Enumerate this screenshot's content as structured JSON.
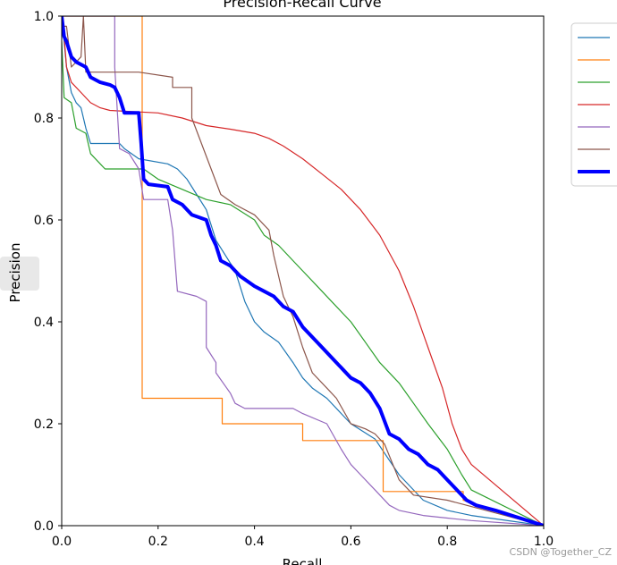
{
  "chart_data": {
    "type": "line",
    "title": "Precision-Recall Curve",
    "xlabel": "Recall",
    "ylabel": "Precision",
    "xlim": [
      0.0,
      1.0
    ],
    "ylim": [
      0.0,
      1.0
    ],
    "xticks": [
      "0.0",
      "0.2",
      "0.4",
      "0.6",
      "0.8",
      "1.0"
    ],
    "yticks": [
      "0.0",
      "0.2",
      "0.4",
      "0.6",
      "0.8",
      "1.0"
    ],
    "grid": false,
    "legend_position": "outside-top-right",
    "series": [
      {
        "name": "",
        "color": "#1f77b4",
        "width": 1.2,
        "points": [
          [
            0,
            1
          ],
          [
            0.005,
            0.95
          ],
          [
            0.01,
            0.9
          ],
          [
            0.02,
            0.85
          ],
          [
            0.03,
            0.83
          ],
          [
            0.04,
            0.82
          ],
          [
            0.05,
            0.78
          ],
          [
            0.06,
            0.75
          ],
          [
            0.12,
            0.75
          ],
          [
            0.13,
            0.74
          ],
          [
            0.16,
            0.72
          ],
          [
            0.22,
            0.71
          ],
          [
            0.24,
            0.7
          ],
          [
            0.26,
            0.68
          ],
          [
            0.28,
            0.65
          ],
          [
            0.3,
            0.62
          ],
          [
            0.32,
            0.56
          ],
          [
            0.34,
            0.53
          ],
          [
            0.36,
            0.5
          ],
          [
            0.37,
            0.47
          ],
          [
            0.38,
            0.44
          ],
          [
            0.4,
            0.4
          ],
          [
            0.42,
            0.38
          ],
          [
            0.45,
            0.36
          ],
          [
            0.48,
            0.32
          ],
          [
            0.5,
            0.29
          ],
          [
            0.52,
            0.27
          ],
          [
            0.55,
            0.25
          ],
          [
            0.58,
            0.22
          ],
          [
            0.6,
            0.2
          ],
          [
            0.65,
            0.17
          ],
          [
            0.7,
            0.1
          ],
          [
            0.75,
            0.05
          ],
          [
            0.8,
            0.03
          ],
          [
            0.85,
            0.02
          ],
          [
            1.0,
            0.0
          ]
        ]
      },
      {
        "name": "",
        "color": "#ff7f0e",
        "width": 1.2,
        "points": [
          [
            0,
            1
          ],
          [
            0.167,
            1
          ],
          [
            0.167,
            0.25
          ],
          [
            0.333,
            0.25
          ],
          [
            0.333,
            0.2
          ],
          [
            0.5,
            0.2
          ],
          [
            0.5,
            0.167
          ],
          [
            0.667,
            0.167
          ],
          [
            0.667,
            0.067
          ],
          [
            0.833,
            0.067
          ],
          [
            0.833,
            0.05
          ],
          [
            1.0,
            0.0
          ]
        ]
      },
      {
        "name": "",
        "color": "#2ca02c",
        "width": 1.2,
        "points": [
          [
            0,
            0.95
          ],
          [
            0.005,
            0.84
          ],
          [
            0.02,
            0.83
          ],
          [
            0.03,
            0.78
          ],
          [
            0.05,
            0.77
          ],
          [
            0.06,
            0.73
          ],
          [
            0.08,
            0.71
          ],
          [
            0.09,
            0.7
          ],
          [
            0.17,
            0.7
          ],
          [
            0.2,
            0.68
          ],
          [
            0.25,
            0.66
          ],
          [
            0.3,
            0.64
          ],
          [
            0.35,
            0.63
          ],
          [
            0.4,
            0.6
          ],
          [
            0.42,
            0.57
          ],
          [
            0.45,
            0.55
          ],
          [
            0.48,
            0.52
          ],
          [
            0.5,
            0.5
          ],
          [
            0.53,
            0.47
          ],
          [
            0.56,
            0.44
          ],
          [
            0.6,
            0.4
          ],
          [
            0.63,
            0.36
          ],
          [
            0.66,
            0.32
          ],
          [
            0.7,
            0.28
          ],
          [
            0.73,
            0.24
          ],
          [
            0.76,
            0.2
          ],
          [
            0.8,
            0.15
          ],
          [
            0.83,
            0.1
          ],
          [
            0.85,
            0.07
          ],
          [
            1.0,
            0.0
          ]
        ]
      },
      {
        "name": "",
        "color": "#d62728",
        "width": 1.2,
        "points": [
          [
            0,
            1
          ],
          [
            0.005,
            0.96
          ],
          [
            0.01,
            0.9
          ],
          [
            0.02,
            0.87
          ],
          [
            0.04,
            0.85
          ],
          [
            0.06,
            0.83
          ],
          [
            0.08,
            0.82
          ],
          [
            0.1,
            0.815
          ],
          [
            0.16,
            0.812
          ],
          [
            0.2,
            0.81
          ],
          [
            0.25,
            0.8
          ],
          [
            0.3,
            0.785
          ],
          [
            0.35,
            0.778
          ],
          [
            0.4,
            0.77
          ],
          [
            0.43,
            0.76
          ],
          [
            0.46,
            0.745
          ],
          [
            0.5,
            0.72
          ],
          [
            0.54,
            0.69
          ],
          [
            0.58,
            0.66
          ],
          [
            0.62,
            0.62
          ],
          [
            0.66,
            0.57
          ],
          [
            0.7,
            0.5
          ],
          [
            0.73,
            0.43
          ],
          [
            0.76,
            0.35
          ],
          [
            0.79,
            0.27
          ],
          [
            0.81,
            0.2
          ],
          [
            0.83,
            0.15
          ],
          [
            0.85,
            0.12
          ],
          [
            1.0,
            0.0
          ]
        ]
      },
      {
        "name": "",
        "color": "#9467bd",
        "width": 1.2,
        "points": [
          [
            0,
            1
          ],
          [
            0.11,
            1
          ],
          [
            0.11,
            0.9
          ],
          [
            0.12,
            0.74
          ],
          [
            0.14,
            0.73
          ],
          [
            0.16,
            0.7
          ],
          [
            0.17,
            0.64
          ],
          [
            0.22,
            0.64
          ],
          [
            0.23,
            0.58
          ],
          [
            0.24,
            0.46
          ],
          [
            0.28,
            0.45
          ],
          [
            0.3,
            0.44
          ],
          [
            0.3,
            0.35
          ],
          [
            0.32,
            0.32
          ],
          [
            0.32,
            0.3
          ],
          [
            0.35,
            0.26
          ],
          [
            0.36,
            0.24
          ],
          [
            0.38,
            0.23
          ],
          [
            0.48,
            0.23
          ],
          [
            0.5,
            0.22
          ],
          [
            0.55,
            0.2
          ],
          [
            0.58,
            0.15
          ],
          [
            0.6,
            0.12
          ],
          [
            0.62,
            0.1
          ],
          [
            0.65,
            0.07
          ],
          [
            0.68,
            0.04
          ],
          [
            0.7,
            0.03
          ],
          [
            0.75,
            0.02
          ],
          [
            0.8,
            0.015
          ],
          [
            0.85,
            0.01
          ],
          [
            1.0,
            0.0
          ]
        ]
      },
      {
        "name": "",
        "color": "#8c564b",
        "width": 1.2,
        "points": [
          [
            0,
            0.98
          ],
          [
            0.01,
            0.98
          ],
          [
            0.02,
            0.9
          ],
          [
            0.04,
            0.92
          ],
          [
            0.045,
            1
          ],
          [
            0.05,
            0.89
          ],
          [
            0.16,
            0.89
          ],
          [
            0.16,
            0.89
          ],
          [
            0.23,
            0.88
          ],
          [
            0.23,
            0.86
          ],
          [
            0.27,
            0.86
          ],
          [
            0.27,
            0.8
          ],
          [
            0.33,
            0.65
          ],
          [
            0.36,
            0.63
          ],
          [
            0.4,
            0.61
          ],
          [
            0.43,
            0.58
          ],
          [
            0.44,
            0.53
          ],
          [
            0.46,
            0.45
          ],
          [
            0.48,
            0.41
          ],
          [
            0.5,
            0.35
          ],
          [
            0.52,
            0.3
          ],
          [
            0.55,
            0.27
          ],
          [
            0.57,
            0.25
          ],
          [
            0.6,
            0.2
          ],
          [
            0.63,
            0.19
          ],
          [
            0.65,
            0.18
          ],
          [
            0.66,
            0.17
          ],
          [
            0.67,
            0.16
          ],
          [
            0.7,
            0.09
          ],
          [
            0.73,
            0.06
          ],
          [
            0.8,
            0.05
          ],
          [
            0.84,
            0.04
          ],
          [
            1.0,
            0.0
          ]
        ]
      },
      {
        "name": "",
        "color": "#0000ff",
        "width": 4,
        "points": [
          [
            0,
            1
          ],
          [
            0.005,
            0.96
          ],
          [
            0.01,
            0.95
          ],
          [
            0.02,
            0.92
          ],
          [
            0.03,
            0.91
          ],
          [
            0.05,
            0.9
          ],
          [
            0.06,
            0.88
          ],
          [
            0.08,
            0.87
          ],
          [
            0.1,
            0.865
          ],
          [
            0.11,
            0.86
          ],
          [
            0.12,
            0.84
          ],
          [
            0.13,
            0.81
          ],
          [
            0.15,
            0.81
          ],
          [
            0.16,
            0.81
          ],
          [
            0.165,
            0.75
          ],
          [
            0.17,
            0.68
          ],
          [
            0.18,
            0.67
          ],
          [
            0.22,
            0.665
          ],
          [
            0.23,
            0.64
          ],
          [
            0.25,
            0.63
          ],
          [
            0.27,
            0.61
          ],
          [
            0.3,
            0.6
          ],
          [
            0.31,
            0.57
          ],
          [
            0.32,
            0.55
          ],
          [
            0.33,
            0.52
          ],
          [
            0.35,
            0.51
          ],
          [
            0.37,
            0.49
          ],
          [
            0.4,
            0.47
          ],
          [
            0.42,
            0.46
          ],
          [
            0.44,
            0.45
          ],
          [
            0.46,
            0.43
          ],
          [
            0.48,
            0.42
          ],
          [
            0.5,
            0.39
          ],
          [
            0.52,
            0.37
          ],
          [
            0.54,
            0.35
          ],
          [
            0.56,
            0.33
          ],
          [
            0.58,
            0.31
          ],
          [
            0.6,
            0.29
          ],
          [
            0.62,
            0.28
          ],
          [
            0.64,
            0.26
          ],
          [
            0.66,
            0.23
          ],
          [
            0.68,
            0.18
          ],
          [
            0.7,
            0.17
          ],
          [
            0.72,
            0.15
          ],
          [
            0.74,
            0.14
          ],
          [
            0.76,
            0.12
          ],
          [
            0.78,
            0.11
          ],
          [
            0.8,
            0.09
          ],
          [
            0.82,
            0.07
          ],
          [
            0.84,
            0.05
          ],
          [
            0.86,
            0.04
          ],
          [
            0.9,
            0.03
          ],
          [
            1.0,
            0.0
          ]
        ]
      }
    ]
  },
  "watermark": "CSDN @Together_CZ"
}
